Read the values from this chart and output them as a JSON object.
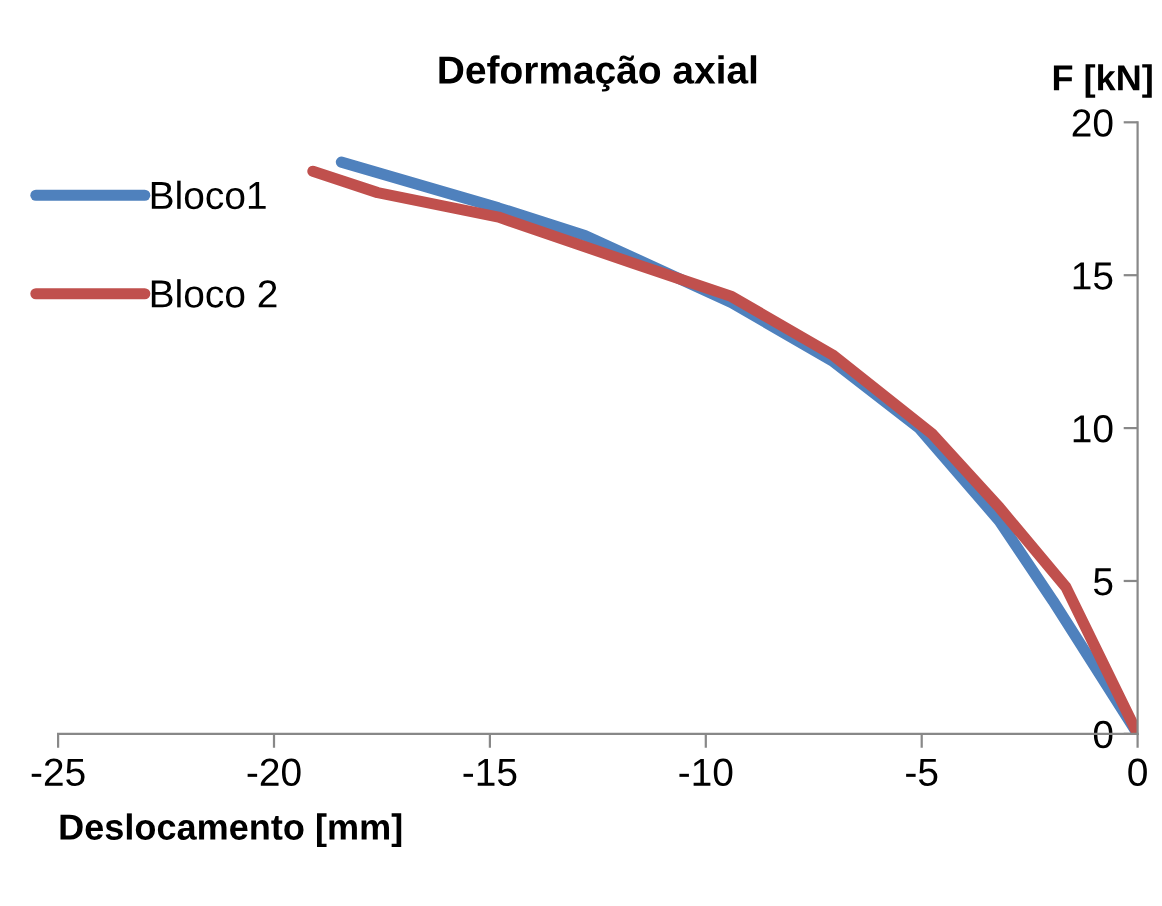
{
  "chart_data": {
    "type": "line",
    "title": "Deformação axial",
    "xlabel": "Deslocamento [mm]",
    "ylabel": "F [kN]",
    "series": [
      {
        "name": "Bloco1",
        "color": "#4f81bd",
        "x": [
          -18.44,
          -14.8,
          -12.8,
          -9.4,
          -7.07,
          -5.06,
          -3.2,
          -1.96,
          0
        ],
        "values": [
          18.7,
          17.2,
          16.3,
          14.1,
          12.2,
          10,
          6.96,
          4.35,
          0
        ]
      },
      {
        "name": "Bloco 2",
        "color": "#c0504d",
        "x": [
          -19.1,
          -17.6,
          -14.8,
          -11.7,
          -9.4,
          -7.07,
          -4.75,
          -3.2,
          -1.66,
          0
        ],
        "values": [
          18.4,
          17.7,
          16.9,
          15.4,
          14.3,
          12.4,
          9.8,
          7.4,
          4.8,
          0
        ]
      }
    ],
    "xlim": [
      -25,
      0
    ],
    "xticks": [
      -25,
      -20,
      -15,
      -10,
      -5,
      0
    ],
    "ylim": [
      0,
      20
    ],
    "yticks": [
      0,
      5,
      10,
      15,
      20
    ],
    "grid": false,
    "legend": "top left",
    "marker": "none",
    "line_style": "solid"
  }
}
